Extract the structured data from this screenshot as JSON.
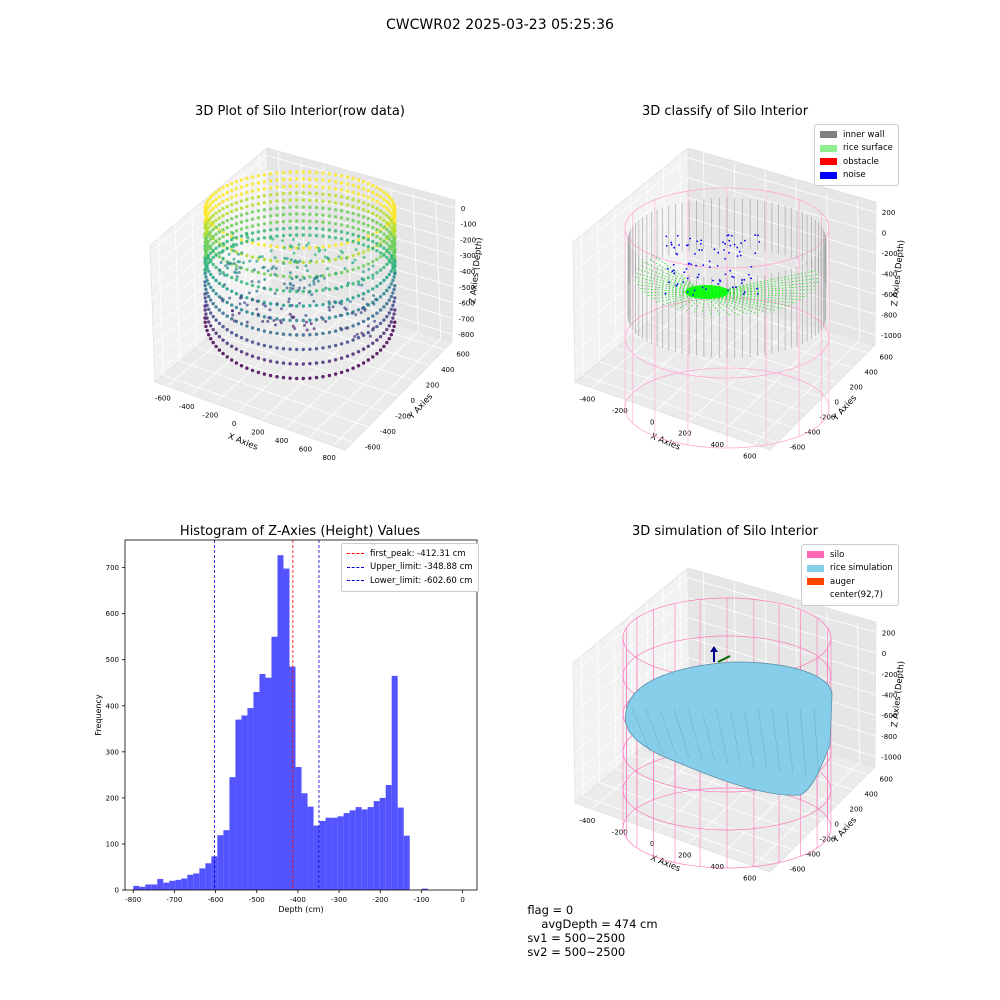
{
  "figure_title": "CWCWR02 2025-03-23 05:25:36",
  "panels": {
    "raw": {
      "title": "3D Plot of Silo Interior(row data)",
      "xlabel": "X Axies",
      "ylabel": "Y Axies",
      "zlabel": "Z Axies (Depth)",
      "x_ticks": [
        "-600",
        "-400",
        "-200",
        "0",
        "200",
        "400",
        "600",
        "800"
      ],
      "y_ticks": [
        "600",
        "400",
        "200",
        "0",
        "-200",
        "-400",
        "-600"
      ],
      "z_ticks": [
        "0",
        "-100",
        "-200",
        "-300",
        "-400",
        "-500",
        "-600",
        "-700",
        "-800"
      ]
    },
    "classify": {
      "title": "3D classify of Silo Interior",
      "xlabel": "X Axies",
      "ylabel": "Y Axies",
      "zlabel": "Z Axies (Depth)",
      "x_ticks": [
        "-400",
        "-200",
        "0",
        "200",
        "400",
        "600"
      ],
      "y_ticks": [
        "600",
        "400",
        "200",
        "0",
        "-200",
        "-400",
        "-600"
      ],
      "z_ticks": [
        "200",
        "0",
        "-200",
        "-400",
        "-600",
        "-800",
        "-1000"
      ],
      "legend": [
        {
          "label": "inner wall",
          "color": "#808080"
        },
        {
          "label": "rice surface",
          "color": "#90ee90"
        },
        {
          "label": "obstacle",
          "color": "#ff0000"
        },
        {
          "label": "noise",
          "color": "#0000ff"
        }
      ]
    },
    "simulation": {
      "title": "3D simulation of Silo Interior",
      "xlabel": "X Axies",
      "ylabel": "Y Axies",
      "zlabel": "Z Axies (Depth)",
      "x_ticks": [
        "-400",
        "-200",
        "0",
        "200",
        "400",
        "600"
      ],
      "y_ticks": [
        "600",
        "400",
        "200",
        "0",
        "-200",
        "-400",
        "-600"
      ],
      "z_ticks": [
        "200",
        "0",
        "-200",
        "-400",
        "-600",
        "-800",
        "-1000"
      ],
      "legend": [
        {
          "label": "silo",
          "color": "#ff69b4"
        },
        {
          "label": "rice simulation",
          "color": "#87ceeb"
        },
        {
          "label": "auger",
          "color": "#ff4500"
        },
        {
          "label": "center(92,7)",
          "color": ""
        }
      ]
    }
  },
  "status": {
    "flag": "flag = 0",
    "avg_depth": "avgDepth = 474 cm",
    "sv1": "sv1 = 500~2500",
    "sv2": "sv2 = 500~2500"
  },
  "chart_data": {
    "type": "bar",
    "title": "Histogram of Z-Axies (Height) Values",
    "xlabel": "Depth (cm)",
    "ylabel": "Frequency",
    "xlim": [
      -820,
      35
    ],
    "ylim": [
      0,
      760
    ],
    "x_ticks": [
      -800,
      -700,
      -600,
      -500,
      -400,
      -300,
      -200,
      -100,
      0
    ],
    "y_ticks": [
      0,
      100,
      200,
      300,
      400,
      500,
      600,
      700
    ],
    "bin_width": 14.6,
    "bin_start": -800,
    "values": [
      9,
      7,
      12,
      12,
      24,
      16,
      20,
      22,
      25,
      33,
      36,
      47,
      58,
      73,
      119,
      130,
      245,
      370,
      379,
      395,
      430,
      469,
      461,
      550,
      727,
      698,
      485,
      267,
      210,
      181,
      140,
      150,
      157,
      157,
      160,
      167,
      173,
      180,
      175,
      180,
      193,
      200,
      228,
      465,
      179,
      118,
      0,
      0,
      3
    ],
    "color": "#4b4bff",
    "lines": [
      {
        "name": "first_peak: -412.31 cm",
        "x": -412.31,
        "color": "#ff0000"
      },
      {
        "name": "Upper_limit: -348.88 cm",
        "x": -348.88,
        "color": "#0000cc"
      },
      {
        "name": "Lower_limit: -602.60 cm",
        "x": -602.6,
        "color": "#0000cc"
      }
    ],
    "legend_position": "top-right"
  }
}
